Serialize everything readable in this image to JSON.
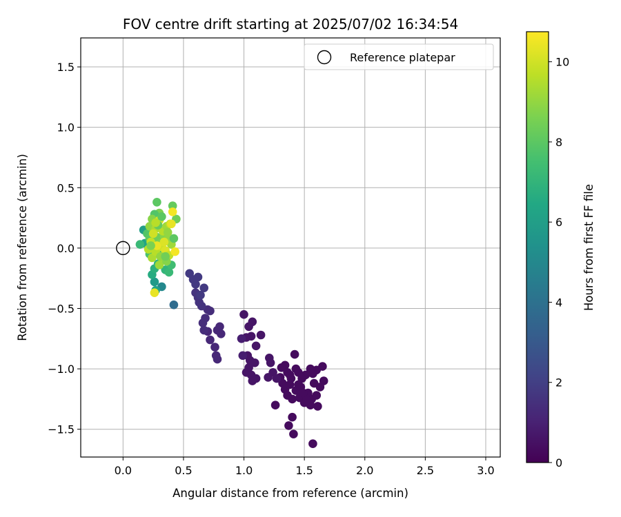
{
  "chart_data": {
    "type": "scatter",
    "title": "FOV centre drift starting at 2025/07/02 16:34:54",
    "xlabel": "Angular distance from reference (arcmin)",
    "ylabel": "Rotation from reference (arcmin)",
    "xlim": [
      -0.35,
      3.12
    ],
    "ylim": [
      -1.73,
      1.74
    ],
    "xticks": [
      0.0,
      0.5,
      1.0,
      1.5,
      2.0,
      2.5,
      3.0
    ],
    "xtick_labels": [
      "0.0",
      "0.5",
      "1.0",
      "1.5",
      "2.0",
      "2.5",
      "3.0"
    ],
    "yticks": [
      -1.5,
      -1.0,
      -0.5,
      0.0,
      0.5,
      1.0,
      1.5
    ],
    "ytick_labels": [
      "−1.5",
      "−1.0",
      "−0.5",
      "0.0",
      "0.5",
      "1.0",
      "1.5"
    ],
    "grid": true,
    "legend": {
      "placement": "top-right",
      "entries": [
        "Reference platepar"
      ]
    },
    "reference_point": {
      "name": "Reference platepar",
      "x": 0.0,
      "y": 0.0
    },
    "colorbar": {
      "label": "Hours from first FF file",
      "range": [
        0,
        10.75
      ],
      "ticks": [
        0,
        2,
        4,
        6,
        8,
        10
      ],
      "tick_labels": [
        "0",
        "2",
        "4",
        "6",
        "8",
        "10"
      ],
      "colormap": "viridis"
    },
    "series": [
      {
        "color_variable": "hours",
        "points": [
          [
            1.42,
            -0.88,
            0.3
          ],
          [
            1.6,
            -1.01,
            0.3
          ],
          [
            1.65,
            -0.98,
            0.3
          ],
          [
            1.66,
            -1.1,
            0.3
          ],
          [
            1.57,
            -1.04,
            0.3
          ],
          [
            1.55,
            -1.0,
            0.3
          ],
          [
            1.51,
            -1.05,
            0.3
          ],
          [
            1.48,
            -1.08,
            0.3
          ],
          [
            1.45,
            -1.03,
            0.3
          ],
          [
            1.45,
            -1.13,
            0.3
          ],
          [
            1.43,
            -1.18,
            0.3
          ],
          [
            1.4,
            -1.25,
            0.3
          ],
          [
            1.46,
            -1.24,
            0.3
          ],
          [
            1.5,
            -1.28,
            0.3
          ],
          [
            1.56,
            -1.25,
            0.3
          ],
          [
            1.61,
            -1.31,
            0.3
          ],
          [
            1.6,
            -1.22,
            0.3
          ],
          [
            1.53,
            -1.2,
            0.3
          ],
          [
            1.58,
            -1.12,
            0.3
          ],
          [
            1.63,
            -1.15,
            0.3
          ],
          [
            1.55,
            -1.3,
            0.3
          ],
          [
            1.57,
            -1.62,
            0.3
          ],
          [
            1.4,
            -1.4,
            0.3
          ],
          [
            1.37,
            -1.47,
            0.3
          ],
          [
            1.41,
            -1.54,
            0.3
          ],
          [
            1.34,
            -0.97,
            0.3
          ],
          [
            1.31,
            -0.99,
            0.3
          ],
          [
            1.36,
            -1.03,
            0.3
          ],
          [
            1.38,
            -1.05,
            0.3
          ],
          [
            1.3,
            -1.07,
            0.3
          ],
          [
            1.32,
            -1.12,
            0.3
          ],
          [
            1.34,
            -1.17,
            0.3
          ],
          [
            1.36,
            -1.22,
            0.3
          ],
          [
            1.38,
            -1.13,
            0.3
          ],
          [
            1.39,
            -1.08,
            0.3
          ],
          [
            1.43,
            -1.0,
            0.3
          ],
          [
            1.47,
            -1.15,
            0.3
          ],
          [
            1.49,
            -1.2,
            0.3
          ],
          [
            1.52,
            -1.26,
            0.3
          ],
          [
            1.26,
            -1.3,
            0.3
          ],
          [
            1.24,
            -1.03,
            0.6
          ],
          [
            1.21,
            -0.91,
            0.6
          ],
          [
            1.22,
            -0.95,
            0.6
          ],
          [
            1.27,
            -1.08,
            0.6
          ],
          [
            1.2,
            -1.07,
            0.6
          ],
          [
            1.14,
            -0.72,
            0.6
          ],
          [
            1.1,
            -0.81,
            0.6
          ],
          [
            1.06,
            -0.73,
            0.6
          ],
          [
            1.07,
            -0.61,
            0.6
          ],
          [
            1.04,
            -0.65,
            0.6
          ],
          [
            1.0,
            -0.55,
            0.6
          ],
          [
            1.02,
            -0.74,
            0.6
          ],
          [
            1.03,
            -0.89,
            0.6
          ],
          [
            1.05,
            -0.93,
            0.6
          ],
          [
            1.09,
            -0.95,
            0.6
          ],
          [
            1.04,
            -0.99,
            0.6
          ],
          [
            1.02,
            -1.03,
            0.6
          ],
          [
            1.06,
            -1.05,
            0.6
          ],
          [
            1.07,
            -1.1,
            0.6
          ],
          [
            1.1,
            -1.08,
            0.6
          ],
          [
            0.99,
            -0.89,
            0.9
          ],
          [
            0.98,
            -0.75,
            0.9
          ],
          [
            0.78,
            -0.92,
            1.2
          ],
          [
            0.77,
            -0.89,
            1.2
          ],
          [
            0.76,
            -0.82,
            1.2
          ],
          [
            0.78,
            -0.68,
            1.2
          ],
          [
            0.8,
            -0.65,
            1.2
          ],
          [
            0.81,
            -0.71,
            1.2
          ],
          [
            0.72,
            -0.76,
            1.2
          ],
          [
            0.7,
            -0.69,
            1.2
          ],
          [
            0.67,
            -0.68,
            1.4
          ],
          [
            0.66,
            -0.62,
            1.4
          ],
          [
            0.68,
            -0.58,
            1.4
          ],
          [
            0.72,
            -0.52,
            1.4
          ],
          [
            0.7,
            -0.51,
            1.4
          ],
          [
            0.65,
            -0.48,
            1.6
          ],
          [
            0.63,
            -0.45,
            1.6
          ],
          [
            0.62,
            -0.41,
            1.6
          ],
          [
            0.6,
            -0.37,
            1.6
          ],
          [
            0.6,
            -0.3,
            1.8
          ],
          [
            0.62,
            -0.24,
            1.8
          ],
          [
            0.55,
            -0.21,
            1.8
          ],
          [
            0.58,
            -0.26,
            1.8
          ],
          [
            0.67,
            -0.33,
            1.8
          ],
          [
            0.64,
            -0.39,
            1.8
          ],
          [
            0.42,
            -0.47,
            3.8
          ],
          [
            0.32,
            -0.32,
            5.0
          ],
          [
            0.26,
            -0.28,
            5.8
          ],
          [
            0.27,
            -0.35,
            6.2
          ],
          [
            0.24,
            -0.22,
            6.6
          ],
          [
            0.26,
            -0.17,
            6.8
          ],
          [
            0.29,
            -0.13,
            7.0
          ],
          [
            0.35,
            -0.18,
            7.0
          ],
          [
            0.38,
            -0.2,
            7.2
          ],
          [
            0.4,
            -0.14,
            7.4
          ],
          [
            0.3,
            -0.05,
            7.6
          ],
          [
            0.22,
            -0.05,
            7.6
          ],
          [
            0.18,
            0.04,
            6.2
          ],
          [
            0.14,
            0.03,
            7.2
          ],
          [
            0.17,
            0.15,
            6.0
          ],
          [
            0.2,
            0.12,
            7.8
          ],
          [
            0.22,
            0.08,
            8.0
          ],
          [
            0.25,
            0.06,
            8.2
          ],
          [
            0.28,
            0.09,
            8.4
          ],
          [
            0.31,
            0.04,
            8.6
          ],
          [
            0.34,
            0.1,
            8.8
          ],
          [
            0.37,
            0.07,
            9.0
          ],
          [
            0.4,
            0.03,
            9.2
          ],
          [
            0.42,
            0.08,
            8.0
          ],
          [
            0.44,
            0.24,
            8.4
          ],
          [
            0.41,
            0.35,
            8.2
          ],
          [
            0.28,
            0.38,
            8.0
          ],
          [
            0.3,
            0.29,
            8.6
          ],
          [
            0.26,
            0.28,
            7.8
          ],
          [
            0.24,
            0.24,
            8.8
          ],
          [
            0.22,
            0.18,
            9.0
          ],
          [
            0.27,
            0.16,
            9.4
          ],
          [
            0.33,
            0.14,
            9.6
          ],
          [
            0.36,
            0.18,
            9.2
          ],
          [
            0.39,
            0.2,
            9.8
          ],
          [
            0.41,
            0.3,
            10.6
          ],
          [
            0.4,
            0.2,
            10.4
          ],
          [
            0.3,
            0.23,
            10.2
          ],
          [
            0.25,
            0.12,
            10.0
          ],
          [
            0.23,
            0.05,
            9.8
          ],
          [
            0.21,
            -0.01,
            9.6
          ],
          [
            0.24,
            -0.08,
            9.4
          ],
          [
            0.27,
            -0.03,
            9.6
          ],
          [
            0.32,
            0.01,
            10.0
          ],
          [
            0.35,
            -0.02,
            10.2
          ],
          [
            0.38,
            -0.06,
            9.8
          ],
          [
            0.33,
            -0.1,
            9.4
          ],
          [
            0.3,
            -0.14,
            9.2
          ],
          [
            0.36,
            -0.11,
            8.8
          ],
          [
            0.43,
            -0.03,
            10.6
          ],
          [
            0.28,
            0.02,
            10.4
          ],
          [
            0.26,
            -0.37,
            10.4
          ],
          [
            0.34,
            0.05,
            10.2
          ],
          [
            0.31,
            -0.07,
            9.0
          ],
          [
            0.29,
            0.19,
            8.2
          ],
          [
            0.37,
            0.13,
            9.0
          ],
          [
            0.23,
            0.02,
            8.6
          ],
          [
            0.35,
            -0.07,
            8.4
          ],
          [
            0.27,
            0.21,
            9.6
          ],
          [
            0.32,
            0.26,
            8.0
          ]
        ]
      }
    ]
  }
}
